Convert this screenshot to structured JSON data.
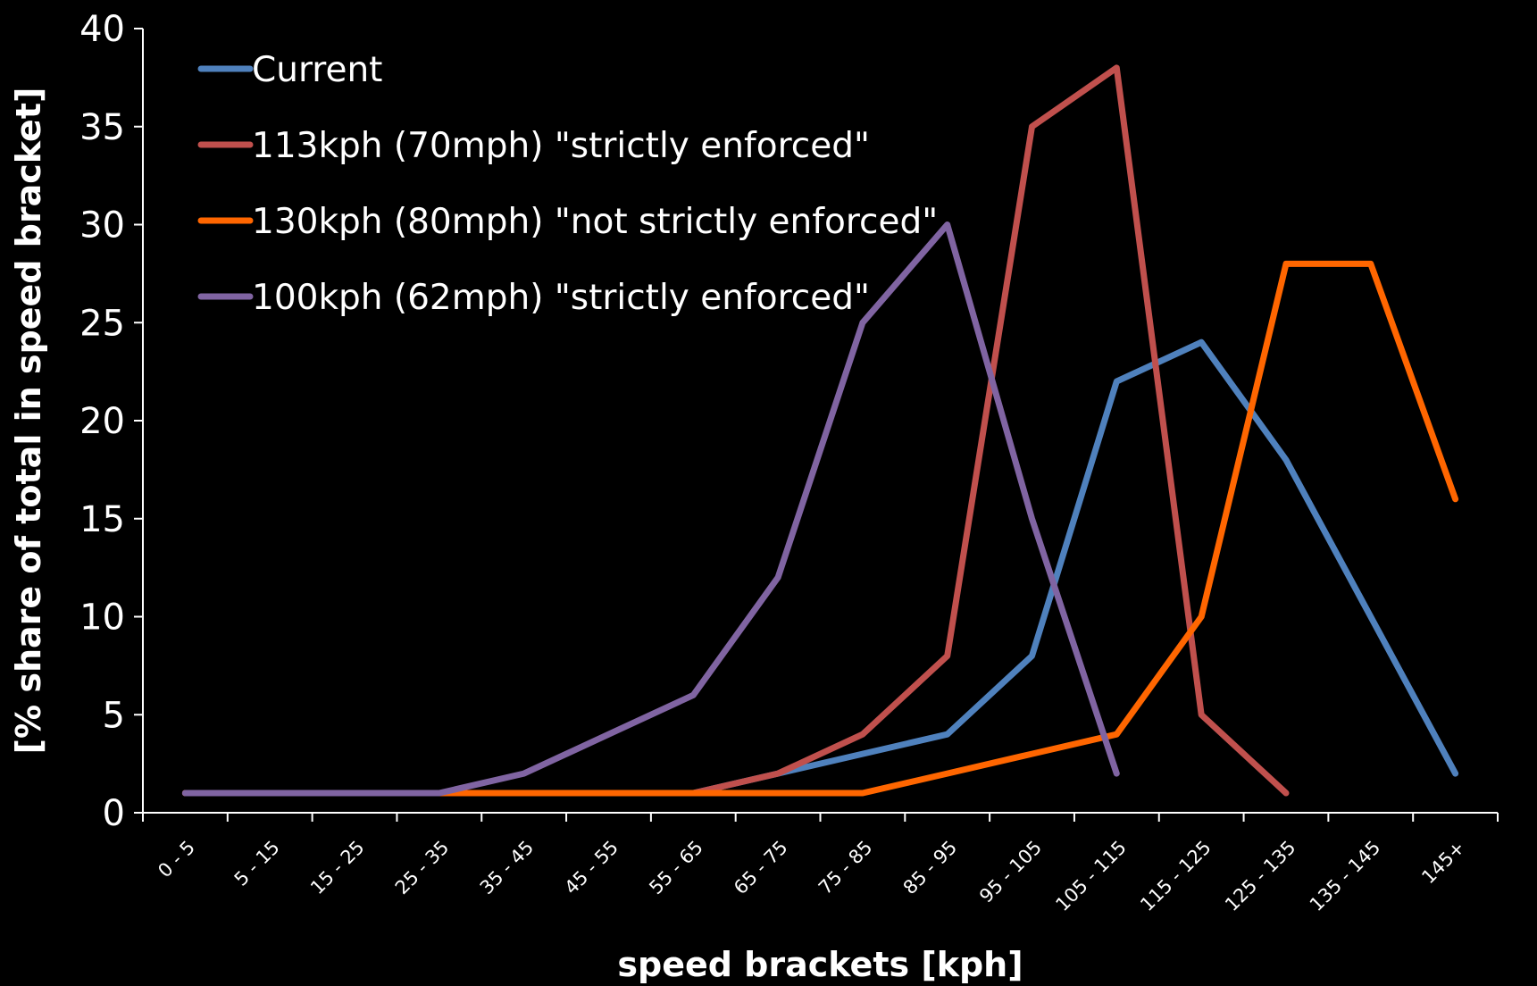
{
  "chart_data": {
    "type": "line",
    "title": "",
    "xlabel": "speed brackets [kph]",
    "ylabel": "[% share of total in speed bracket]",
    "ylim": [
      0,
      40
    ],
    "yticks": [
      0,
      5,
      10,
      15,
      20,
      25,
      30,
      35,
      40
    ],
    "grid": false,
    "legend_position": "top-left",
    "background": "#000000",
    "categories": [
      "0 - 5",
      "5 - 15",
      "15 - 25",
      "25 - 35",
      "35 - 45",
      "45 - 55",
      "55 - 65",
      "65 - 75",
      "75 - 85",
      "85 - 95",
      "95 - 105",
      "105 - 115",
      "115 - 125",
      "125 - 135",
      "135 - 145",
      "145+"
    ],
    "series": [
      {
        "name": "Current",
        "color": "#4f81bd",
        "values": [
          1,
          1,
          1,
          1,
          1,
          1,
          1,
          2,
          3,
          4,
          8,
          22,
          24,
          18,
          10,
          2
        ]
      },
      {
        "name": "113kph (70mph) \"strictly enforced\"",
        "color": "#c0504d",
        "values": [
          1,
          1,
          1,
          1,
          1,
          1,
          1,
          2,
          4,
          8,
          35,
          38,
          5,
          1,
          null,
          null
        ]
      },
      {
        "name": "130kph (80mph) \"not strictly enforced\"",
        "color": "#ff6600",
        "values": [
          1,
          1,
          1,
          1,
          1,
          1,
          1,
          1,
          1,
          2,
          3,
          4,
          10,
          28,
          28,
          16
        ]
      },
      {
        "name": "100kph (62mph) \"strictly enforced\"",
        "color": "#8064a2",
        "values": [
          1,
          1,
          1,
          1,
          2,
          4,
          6,
          12,
          25,
          30,
          15,
          2,
          null,
          null,
          null,
          null
        ]
      }
    ]
  }
}
